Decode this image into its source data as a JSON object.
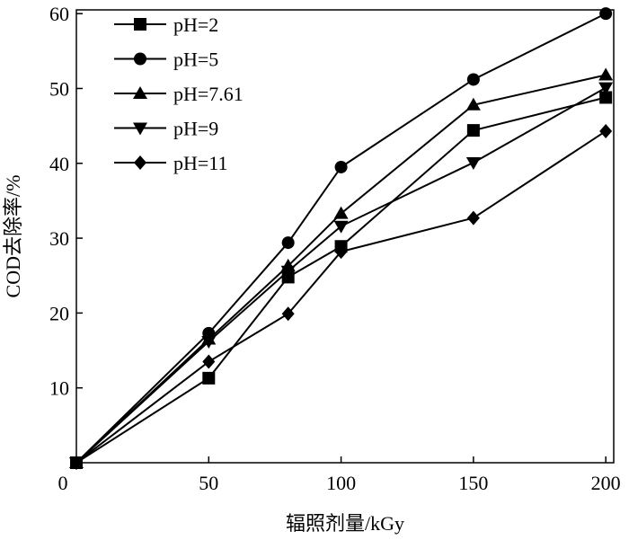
{
  "chart_data": {
    "type": "line",
    "x_label": "辐照剂量/kGy",
    "y_label": "COD去除率/%",
    "x": [
      0,
      50,
      80,
      100,
      150,
      200
    ],
    "series": [
      {
        "name": "pH=2",
        "color": "#000000",
        "marker": "square",
        "values": [
          0,
          11.3,
          24.8,
          28.9,
          44.4,
          48.8
        ]
      },
      {
        "name": "pH=5",
        "color": "#000000",
        "marker": "circle",
        "values": [
          0,
          17.3,
          29.4,
          39.5,
          51.2,
          60
        ]
      },
      {
        "name": "pH=7.61",
        "color": "#000000",
        "marker": "triangle-up",
        "values": [
          0,
          16.5,
          26.3,
          33.3,
          47.8,
          51.8
        ]
      },
      {
        "name": "pH=9",
        "color": "#000000",
        "marker": "triangle-down",
        "values": [
          0,
          16.2,
          25.6,
          31.6,
          40.1,
          50.1
        ]
      },
      {
        "name": "pH=11",
        "color": "#000000",
        "marker": "diamond",
        "values": [
          0,
          13.5,
          19.9,
          28.2,
          32.7,
          44.3
        ]
      }
    ],
    "xlim": [
      0,
      203
    ],
    "ylim": [
      0,
      60.5
    ],
    "xticks": [
      0,
      50,
      100,
      150,
      200
    ],
    "yticks": [
      10,
      20,
      30,
      40,
      50,
      60
    ],
    "legend": "upper-left",
    "grid": false
  }
}
